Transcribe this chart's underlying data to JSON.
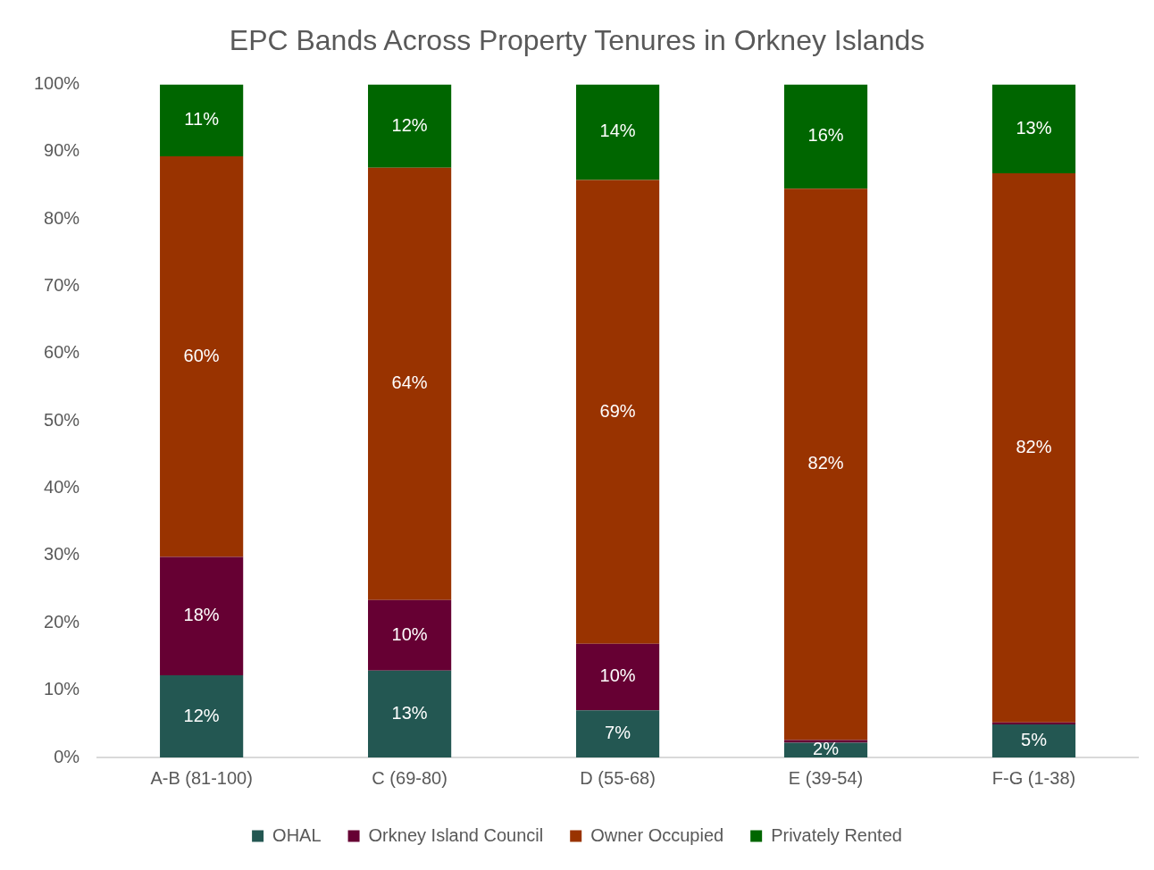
{
  "chart_data": {
    "type": "bar",
    "title": "EPC Bands Across Property Tenures in Orkney Islands",
    "categories": [
      "A-B (81-100)",
      "C (69-80)",
      "D (55-68)",
      "E (39-54)",
      "F-G (1-38)"
    ],
    "stacked": true,
    "ylim": [
      0,
      100
    ],
    "yticks": [
      {
        "value": 0,
        "label": "0%"
      },
      {
        "value": 10,
        "label": "10%"
      },
      {
        "value": 20,
        "label": "20%"
      },
      {
        "value": 30,
        "label": "30%"
      },
      {
        "value": 40,
        "label": "40%"
      },
      {
        "value": 50,
        "label": "50%"
      },
      {
        "value": 60,
        "label": "60%"
      },
      {
        "value": 70,
        "label": "70%"
      },
      {
        "value": 80,
        "label": "80%"
      },
      {
        "value": 90,
        "label": "90%"
      },
      {
        "value": 100,
        "label": "100%"
      }
    ],
    "grid": false,
    "legend": "bottom",
    "series": [
      {
        "name": "OHAL",
        "color": "#235752",
        "values": [
          12.2,
          12.9,
          7.0,
          2.2,
          4.9
        ],
        "value_labels": [
          "12%",
          "13%",
          "7%",
          "2%",
          "5%"
        ]
      },
      {
        "name": "Orkney Island Council",
        "color": "#660033",
        "values": [
          17.6,
          10.5,
          9.9,
          0.4,
          0.3
        ],
        "value_labels": [
          "18%",
          "10%",
          "10%",
          null,
          null
        ]
      },
      {
        "name": "Owner Occupied",
        "color": "#993300",
        "values": [
          59.5,
          64.2,
          68.9,
          81.9,
          81.6
        ],
        "value_labels": [
          "60%",
          "64%",
          "69%",
          "82%",
          "82%"
        ]
      },
      {
        "name": "Privately Rented",
        "color": "#006600",
        "values": [
          10.7,
          12.4,
          14.2,
          15.5,
          13.2
        ],
        "value_labels": [
          "11%",
          "12%",
          "14%",
          "16%",
          "13%"
        ]
      }
    ]
  }
}
